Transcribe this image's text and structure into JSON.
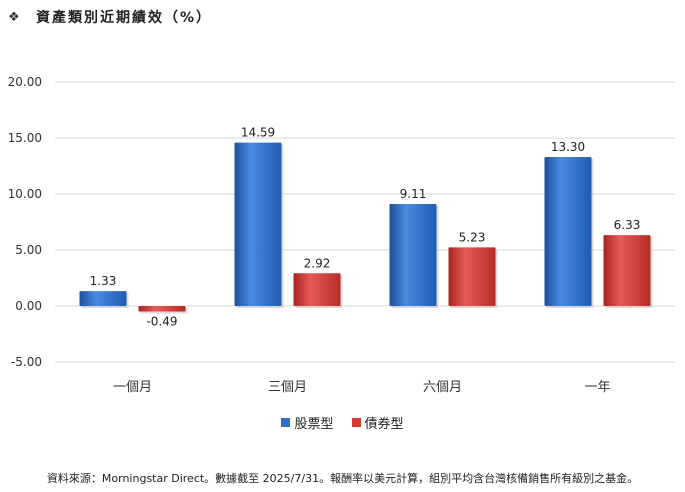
{
  "header": {
    "bullet": "❖",
    "title": "資產類別近期績效（%）"
  },
  "chart_data": {
    "type": "bar",
    "categories": [
      "一個月",
      "三個月",
      "六個月",
      "一年"
    ],
    "series": [
      {
        "name": "股票型",
        "values": [
          1.33,
          14.59,
          9.11,
          13.3
        ],
        "labels": [
          "1.33",
          "14.59",
          "9.11",
          "13.30"
        ],
        "color": "#2e6fc7"
      },
      {
        "name": "債券型",
        "values": [
          -0.49,
          2.92,
          5.23,
          6.33
        ],
        "labels": [
          "-0.49",
          "2.92",
          "5.23",
          "6.33"
        ],
        "color": "#d53a36"
      }
    ],
    "ylim": [
      -5,
      20
    ],
    "yticks": [
      "-5.00",
      "0.00",
      "5.00",
      "10.00",
      "15.00",
      "20.00"
    ],
    "grid": true,
    "legend_position": "bottom"
  },
  "footer": {
    "text": "資料來源：Morningstar Direct。數據截至 2025/7/31。報酬率以美元計算，組別平均含台灣核備銷售所有級別之基金。"
  }
}
